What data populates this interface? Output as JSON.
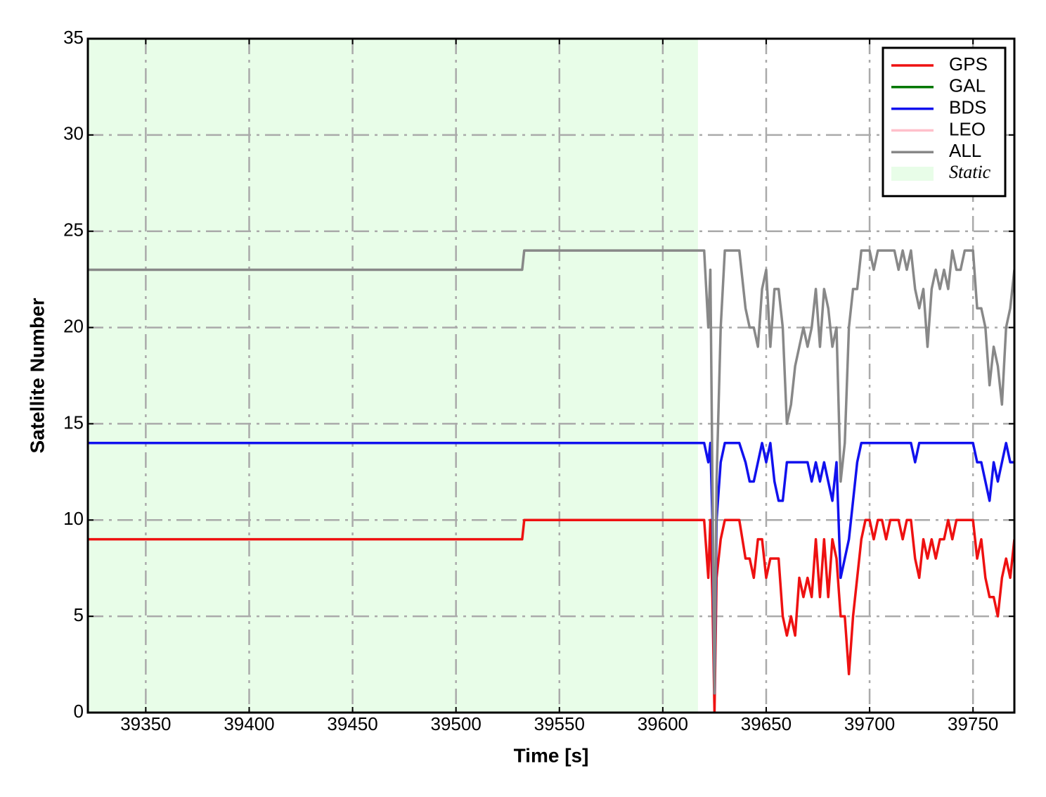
{
  "chart_data": {
    "type": "line",
    "x_label": "Time [s]",
    "y_label": "Satellite Number",
    "xlim": [
      39322,
      39770
    ],
    "ylim": [
      0,
      35
    ],
    "xticks": [
      39350,
      39400,
      39450,
      39500,
      39550,
      39600,
      39650,
      39700,
      39750
    ],
    "yticks": [
      0,
      5,
      10,
      15,
      20,
      25,
      30,
      35
    ],
    "grid": true,
    "legend": "upper right",
    "shade": {
      "label": "Static",
      "xrange": [
        39322,
        39617
      ],
      "color": "#e8fde8"
    },
    "x": [
      39322,
      39532,
      39533,
      39620,
      39622,
      39623,
      39624,
      39625,
      39626,
      39628,
      39630,
      39633,
      39637,
      39640,
      39642,
      39644,
      39646,
      39648,
      39650,
      39652,
      39654,
      39656,
      39658,
      39660,
      39662,
      39664,
      39666,
      39668,
      39670,
      39672,
      39674,
      39676,
      39678,
      39680,
      39682,
      39684,
      39686,
      39688,
      39690,
      39692,
      39694,
      39696,
      39698,
      39700,
      39702,
      39704,
      39706,
      39708,
      39710,
      39712,
      39714,
      39716,
      39718,
      39720,
      39722,
      39724,
      39726,
      39728,
      39730,
      39732,
      39734,
      39736,
      39738,
      39740,
      39742,
      39744,
      39746,
      39748,
      39750,
      39752,
      39754,
      39756,
      39758,
      39760,
      39762,
      39764,
      39766,
      39768,
      39770
    ],
    "series": [
      {
        "name": "GPS",
        "color": "#ee1111",
        "values": [
          9,
          9,
          10,
          10,
          7,
          10,
          6,
          0,
          7,
          9,
          10,
          10,
          10,
          8,
          8,
          7,
          9,
          9,
          7,
          8,
          8,
          8,
          5,
          4,
          5,
          4,
          7,
          6,
          7,
          6,
          9,
          6,
          9,
          6,
          9,
          8,
          5,
          5,
          2,
          5,
          7,
          9,
          10,
          10,
          9,
          10,
          10,
          9,
          10,
          10,
          10,
          9,
          10,
          10,
          8,
          7,
          9,
          8,
          9,
          8,
          9,
          9,
          10,
          9,
          10,
          10,
          10,
          10,
          10,
          8,
          9,
          7,
          6,
          6,
          5,
          7,
          8,
          7,
          9
        ]
      },
      {
        "name": "GAL",
        "color": "#007700",
        "values": [
          null,
          null,
          null,
          null,
          null,
          null,
          null,
          null,
          null,
          null,
          null,
          null,
          null,
          null,
          null,
          null,
          null,
          null,
          null,
          null,
          null,
          null,
          null,
          null,
          null,
          null,
          null,
          null,
          null,
          null,
          null,
          null,
          null,
          null,
          null,
          null,
          null,
          null,
          null,
          null,
          null,
          null,
          null,
          null,
          null,
          null,
          null,
          null,
          null,
          null,
          null,
          null,
          null,
          null,
          null,
          null,
          null,
          null,
          null,
          null,
          null,
          null,
          null,
          null,
          null,
          null,
          null,
          null,
          null,
          null,
          null,
          null,
          null,
          null,
          null,
          null,
          null,
          null,
          null
        ]
      },
      {
        "name": "BDS",
        "color": "#1111ee",
        "values": [
          14,
          14,
          14,
          14,
          13,
          14,
          10,
          1,
          10,
          13,
          14,
          14,
          14,
          13,
          12,
          12,
          13,
          14,
          13,
          14,
          12,
          11,
          11,
          13,
          13,
          13,
          13,
          13,
          13,
          12,
          13,
          12,
          13,
          12,
          11,
          13,
          7,
          8,
          9,
          11,
          13,
          14,
          14,
          14,
          14,
          14,
          14,
          14,
          14,
          14,
          14,
          14,
          14,
          14,
          13,
          14,
          14,
          14,
          14,
          14,
          14,
          14,
          14,
          14,
          14,
          14,
          14,
          14,
          14,
          13,
          13,
          12,
          11,
          13,
          12,
          13,
          14,
          13,
          13
        ]
      },
      {
        "name": "LEO",
        "color": "#ffc0cb",
        "values": [
          null,
          null,
          null,
          null,
          null,
          null,
          null,
          null,
          null,
          null,
          null,
          null,
          null,
          null,
          null,
          null,
          null,
          null,
          null,
          null,
          null,
          null,
          null,
          null,
          null,
          null,
          null,
          null,
          null,
          null,
          null,
          null,
          null,
          null,
          null,
          null,
          null,
          null,
          null,
          null,
          null,
          null,
          null,
          null,
          null,
          null,
          null,
          null,
          null,
          null,
          null,
          null,
          null,
          null,
          null,
          null,
          null,
          null,
          null,
          null,
          null,
          null,
          null,
          null,
          null,
          null,
          null,
          null,
          null,
          null,
          null,
          null,
          null,
          null,
          null,
          null,
          null,
          null,
          null
        ]
      },
      {
        "name": "ALL",
        "color": "#888888",
        "values": [
          23,
          23,
          24,
          24,
          20,
          23,
          12,
          1,
          12,
          20,
          24,
          24,
          24,
          21,
          20,
          20,
          19,
          22,
          23,
          19,
          22,
          22,
          20,
          15,
          16,
          18,
          19,
          20,
          19,
          20,
          22,
          19,
          22,
          21,
          19,
          20,
          12,
          14,
          20,
          22,
          22,
          24,
          24,
          24,
          23,
          24,
          24,
          24,
          24,
          24,
          23,
          24,
          23,
          24,
          22,
          21,
          22,
          19,
          22,
          23,
          22,
          23,
          22,
          24,
          23,
          23,
          24,
          24,
          24,
          21,
          21,
          20,
          17,
          19,
          18,
          16,
          20,
          21,
          23
        ]
      }
    ]
  }
}
